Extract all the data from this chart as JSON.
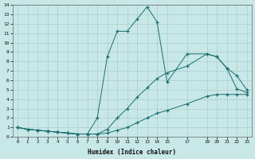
{
  "bg_color": "#c8e8e8",
  "grid_color": "#aacccc",
  "line_color": "#1a6e6e",
  "xlabel": "Humidex (Indice chaleur)",
  "xlim": [
    -0.5,
    23.5
  ],
  "ylim": [
    0,
    14
  ],
  "xtick_vals": [
    0,
    1,
    2,
    3,
    4,
    5,
    6,
    7,
    8,
    9,
    10,
    11,
    12,
    13,
    14,
    15,
    17,
    19,
    20,
    21,
    22,
    23
  ],
  "ytick_vals": [
    0,
    1,
    2,
    3,
    4,
    5,
    6,
    7,
    8,
    9,
    10,
    11,
    12,
    13,
    14
  ],
  "line1_x": [
    0,
    1,
    2,
    3,
    4,
    5,
    6,
    7,
    8,
    9,
    10,
    11,
    12,
    13,
    14,
    15,
    17,
    19,
    20,
    21,
    22,
    23
  ],
  "line1_y": [
    1,
    0.8,
    0.7,
    0.6,
    0.5,
    0.4,
    0.3,
    0.3,
    2.0,
    8.5,
    11.2,
    11.2,
    12.5,
    13.8,
    12.2,
    5.8,
    8.8,
    8.8,
    8.5,
    7.3,
    5.1,
    4.7
  ],
  "line2_x": [
    0,
    1,
    2,
    3,
    4,
    5,
    6,
    7,
    8,
    9,
    10,
    11,
    12,
    13,
    14,
    15,
    17,
    19,
    20,
    21,
    22,
    23
  ],
  "line2_y": [
    1,
    0.8,
    0.7,
    0.6,
    0.5,
    0.4,
    0.3,
    0.3,
    0.3,
    0.8,
    2.0,
    3.0,
    4.2,
    5.2,
    6.2,
    6.8,
    7.5,
    8.8,
    8.5,
    7.3,
    6.5,
    5.0
  ],
  "line3_x": [
    0,
    1,
    2,
    3,
    4,
    5,
    6,
    7,
    8,
    9,
    10,
    11,
    12,
    13,
    14,
    15,
    17,
    19,
    20,
    21,
    22,
    23
  ],
  "line3_y": [
    1,
    0.8,
    0.7,
    0.6,
    0.5,
    0.4,
    0.3,
    0.3,
    0.3,
    0.4,
    0.7,
    1.0,
    1.5,
    2.0,
    2.5,
    2.8,
    3.5,
    4.3,
    4.5,
    4.5,
    4.5,
    4.5
  ]
}
